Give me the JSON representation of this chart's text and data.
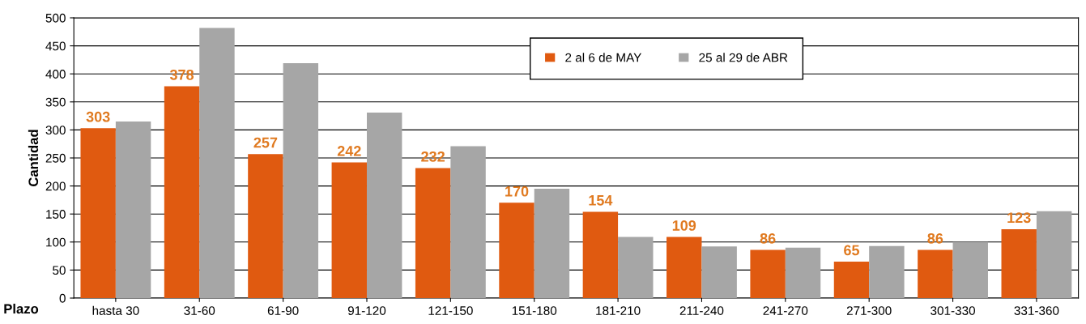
{
  "chart_data": {
    "type": "bar",
    "xlabel": "Plazo",
    "ylabel": "Cantidad",
    "categories": [
      "hasta 30",
      "31-60",
      "61-90",
      "91-120",
      "121-150",
      "151-180",
      "181-210",
      "211-240",
      "241-270",
      "271-300",
      "301-330",
      "331-360"
    ],
    "series": [
      {
        "name": "2 al 6 de MAY",
        "color": "#e05a10",
        "values": [
          303,
          378,
          257,
          242,
          232,
          170,
          154,
          109,
          86,
          65,
          86,
          123
        ],
        "value_labels": [
          "303",
          "378",
          "257",
          "242",
          "232",
          "170",
          "154",
          "109",
          "86",
          "65",
          "86",
          "123"
        ]
      },
      {
        "name": "25 al 29 de ABR",
        "color": "#a6a6a6",
        "values": [
          315,
          482,
          419,
          331,
          271,
          195,
          109,
          92,
          90,
          93,
          100,
          155
        ]
      }
    ],
    "ylim": [
      0,
      500
    ],
    "yticks": [
      0,
      50,
      100,
      150,
      200,
      250,
      300,
      350,
      400,
      450,
      500
    ],
    "grid": "y",
    "legend": "top right"
  }
}
